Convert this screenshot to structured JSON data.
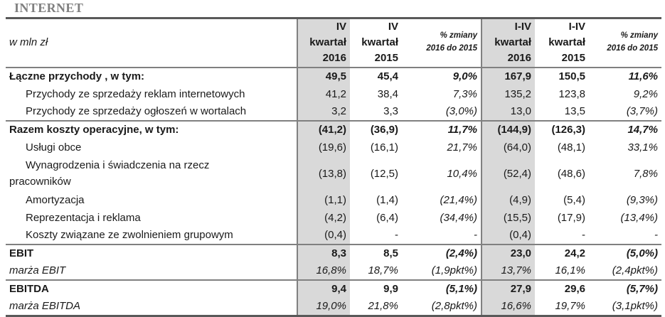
{
  "title": "INTERNET",
  "unit_label": "w mln zł",
  "colors": {
    "shaded_column_bg": "#d9d9d9",
    "outer_border": "#595959",
    "inner_border": "#808080",
    "title_color": "#7f7f7f"
  },
  "table": {
    "headers": {
      "q4_2016": "IV\nkwartał\n2016",
      "q4_2015": "IV\nkwartał\n2015",
      "q4_change": "% zmiany\n2016 do 2015",
      "ytd_2016": "I-IV\nkwartał\n2016",
      "ytd_2015": "I-IV\nkwartał\n2015",
      "ytd_change": "% zmiany\n2016 do 2015"
    },
    "rows": [
      {
        "label": "Łączne przychody , w tym:",
        "style": "r-bold",
        "section_end": false,
        "values": [
          "49,5",
          "45,4",
          "9,0%",
          "167,9",
          "150,5",
          "11,6%"
        ]
      },
      {
        "label": "Przychody ze sprzedaży reklam internetowych",
        "style": "r-sub",
        "section_end": false,
        "values": [
          "41,2",
          "38,4",
          "7,3%",
          "135,2",
          "123,8",
          "9,2%"
        ]
      },
      {
        "label": "Przychody ze sprzedaży ogłoszeń w wortalach",
        "style": "r-sub",
        "section_end": true,
        "values": [
          "3,2",
          "3,3",
          "(3,0%)",
          "13,0",
          "13,5",
          "(3,7%)"
        ]
      },
      {
        "label": "Razem koszty operacyjne, w tym:",
        "style": "r-bold",
        "section_end": false,
        "values": [
          "(41,2)",
          "(36,9)",
          "11,7%",
          "(144,9)",
          "(126,3)",
          "14,7%"
        ]
      },
      {
        "label": "Usługi obce",
        "style": "r-sub",
        "section_end": false,
        "values": [
          "(19,6)",
          "(16,1)",
          "21,7%",
          "(64,0)",
          "(48,1)",
          "33,1%"
        ]
      },
      {
        "label": "Wynagrodzenia i świadczenia na rzecz\npracowników",
        "style": "r-wrap",
        "section_end": false,
        "values": [
          "(13,8)",
          "(12,5)",
          "10,4%",
          "(52,4)",
          "(48,6)",
          "7,8%"
        ]
      },
      {
        "label": "Amortyzacja",
        "style": "r-sub",
        "section_end": false,
        "values": [
          "(1,1)",
          "(1,4)",
          "(21,4%)",
          "(4,9)",
          "(5,4)",
          "(9,3%)"
        ]
      },
      {
        "label": "Reprezentacja i reklama",
        "style": "r-sub",
        "section_end": false,
        "values": [
          "(4,2)",
          "(6,4)",
          "(34,4%)",
          "(15,5)",
          "(17,9)",
          "(13,4%)"
        ]
      },
      {
        "label": "Koszty związane ze zwolnieniem grupowym",
        "style": "r-sub",
        "section_end": true,
        "values": [
          "(0,4)",
          "-",
          "-",
          "(0,4)",
          "-",
          "-"
        ]
      },
      {
        "label": "EBIT",
        "style": "r-bold",
        "section_end": false,
        "values": [
          "8,3",
          "8,5",
          "(2,4%)",
          "23,0",
          "24,2",
          "(5,0%)"
        ]
      },
      {
        "label": "marża EBIT",
        "style": "r-ital",
        "section_end": true,
        "values": [
          "16,8%",
          "18,7%",
          "(1,9pkt%)",
          "13,7%",
          "16,1%",
          "(2,4pkt%)"
        ]
      },
      {
        "label": "EBITDA",
        "style": "r-bold",
        "section_end": false,
        "values": [
          "9,4",
          "9,9",
          "(5,1%)",
          "27,9",
          "29,6",
          "(5,7%)"
        ]
      },
      {
        "label": "marża EBITDA",
        "style": "r-ital",
        "section_end": false,
        "values": [
          "19,0%",
          "21,8%",
          "(2,8pkt%)",
          "16,6%",
          "19,7%",
          "(3,1pkt%)"
        ]
      }
    ]
  }
}
